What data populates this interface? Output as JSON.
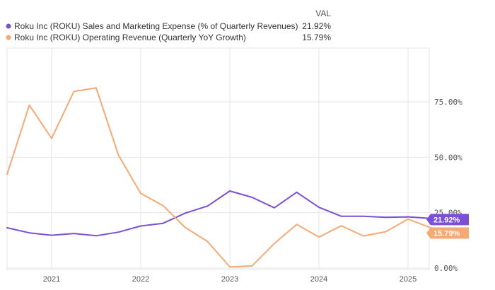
{
  "legend": {
    "header": "VAL",
    "items": [
      {
        "label": "Roku Inc (ROKU) Sales and Marketing Expense (% of Quarterly Revenues)",
        "value": "21.92%",
        "color": "#7b4fd6",
        "icon": "circle-marker-icon"
      },
      {
        "label": "Roku Inc (ROKU) Operating Revenue (Quarterly YoY Growth)",
        "value": "15.79%",
        "color": "#f7a974",
        "icon": "circle-marker-icon"
      }
    ]
  },
  "chart_data": {
    "type": "line",
    "x_axis": {
      "type": "date",
      "ticks": [
        "2021",
        "2022",
        "2023",
        "2024",
        "2025"
      ],
      "range": [
        "2020-07",
        "2025-06"
      ]
    },
    "y_axis": {
      "ticks": [
        "0.00%",
        "25.00%",
        "50.00%",
        "75.00%"
      ],
      "range": [
        -2,
        100
      ],
      "position": "right",
      "unit": "%"
    },
    "grid": {
      "x": true,
      "y": true
    },
    "series": [
      {
        "name": "Roku Inc (ROKU) Sales and Marketing Expense (% of Quarterly Revenues)",
        "color": "#7b4fd6",
        "last_label": "21.92%",
        "points": [
          {
            "x": "2020-07",
            "y": 18.2
          },
          {
            "x": "2020-10",
            "y": 15.9
          },
          {
            "x": "2021-01",
            "y": 14.8
          },
          {
            "x": "2021-04",
            "y": 15.6
          },
          {
            "x": "2021-07",
            "y": 14.6
          },
          {
            "x": "2021-10",
            "y": 16.2
          },
          {
            "x": "2022-01",
            "y": 19.0
          },
          {
            "x": "2022-04",
            "y": 20.2
          },
          {
            "x": "2022-07",
            "y": 24.8
          },
          {
            "x": "2022-10",
            "y": 28.0
          },
          {
            "x": "2023-01",
            "y": 34.8
          },
          {
            "x": "2023-04",
            "y": 31.9
          },
          {
            "x": "2023-07",
            "y": 27.2
          },
          {
            "x": "2023-10",
            "y": 34.2
          },
          {
            "x": "2024-01",
            "y": 27.4
          },
          {
            "x": "2024-04",
            "y": 23.4
          },
          {
            "x": "2024-07",
            "y": 23.4
          },
          {
            "x": "2024-10",
            "y": 22.9
          },
          {
            "x": "2025-01",
            "y": 23.1
          },
          {
            "x": "2025-04",
            "y": 22.4
          },
          {
            "x": "2025-06",
            "y": 21.92
          }
        ]
      },
      {
        "name": "Roku Inc (ROKU) Operating Revenue (Quarterly YoY Growth)",
        "color": "#f7a974",
        "last_label": "15.79%",
        "points": [
          {
            "x": "2020-07",
            "y": 42.3
          },
          {
            "x": "2020-10",
            "y": 73.5
          },
          {
            "x": "2021-01",
            "y": 58.5
          },
          {
            "x": "2021-04",
            "y": 79.7
          },
          {
            "x": "2021-07",
            "y": 81.3
          },
          {
            "x": "2021-10",
            "y": 51.0
          },
          {
            "x": "2022-01",
            "y": 33.7
          },
          {
            "x": "2022-04",
            "y": 28.2
          },
          {
            "x": "2022-07",
            "y": 18.3
          },
          {
            "x": "2022-10",
            "y": 12.0
          },
          {
            "x": "2023-01",
            "y": 0.5
          },
          {
            "x": "2023-04",
            "y": 1.0
          },
          {
            "x": "2023-07",
            "y": 11.1
          },
          {
            "x": "2023-10",
            "y": 19.7
          },
          {
            "x": "2024-01",
            "y": 14.0
          },
          {
            "x": "2024-04",
            "y": 19.1
          },
          {
            "x": "2024-07",
            "y": 14.5
          },
          {
            "x": "2024-10",
            "y": 16.4
          },
          {
            "x": "2025-01",
            "y": 22.1
          },
          {
            "x": "2025-06",
            "y": 15.79
          }
        ]
      }
    ]
  }
}
